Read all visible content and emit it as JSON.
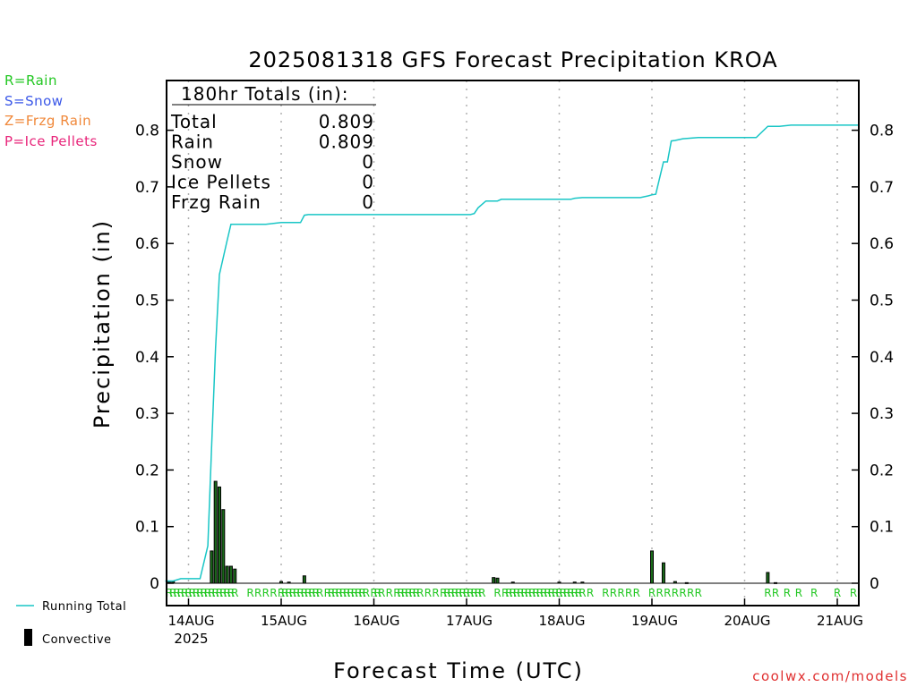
{
  "legend_keys": [
    {
      "text": "R=Rain",
      "color": "#22c722"
    },
    {
      "text": "S=Snow",
      "color": "#3a57e8"
    },
    {
      "text": "Z=Frzg Rain",
      "color": "#f0883a"
    },
    {
      "text": "P=Ice Pellets",
      "color": "#e8257a"
    }
  ],
  "bottom_legend": {
    "running_total": "Running Total",
    "convective": "Convective"
  },
  "totals_box": {
    "header": "180hr Totals (in):",
    "rows": [
      {
        "label": "Total",
        "value": "0.809"
      },
      {
        "label": "Rain",
        "value": "0.809"
      },
      {
        "label": "Snow",
        "value": "0"
      },
      {
        "label": "Ice Pellets",
        "value": "0"
      },
      {
        "label": "Frzg Rain",
        "value": "0"
      }
    ]
  },
  "credit": "coolwx.com/models",
  "colors": {
    "running_total": "#19c6c6",
    "bars": "#000000",
    "bar_fill": "#1a6b1a",
    "ptype_rain": "#22c722",
    "grid": "#b0b0b0"
  },
  "chart_data": {
    "type": "bar",
    "title": "2025081318 GFS Forecast Precipitation KROA",
    "xlabel": "Forecast Time (UTC)",
    "ylabel": "Precipitation (in)",
    "ylim": [
      0,
      0.9
    ],
    "xlim_hours": [
      -6,
      180
    ],
    "y_ticks": [
      "0",
      "0.1",
      "0.2",
      "0.3",
      "0.4",
      "0.5",
      "0.6",
      "0.7",
      "0.8"
    ],
    "x_ticks": [
      {
        "hour": 6,
        "label": "14AUG",
        "sublabel": "2025"
      },
      {
        "hour": 30,
        "label": "15AUG"
      },
      {
        "hour": 54,
        "label": "16AUG"
      },
      {
        "hour": 78,
        "label": "17AUG"
      },
      {
        "hour": 102,
        "label": "18AUG"
      },
      {
        "hour": 126,
        "label": "19AUG"
      },
      {
        "hour": 150,
        "label": "20AUG"
      },
      {
        "hour": 174,
        "label": "21AUG"
      }
    ],
    "grid": "dotted vertical at 00Z",
    "series": [
      {
        "name": "Running Total",
        "type": "line",
        "x": [
          -6,
          -4,
          -2,
          0,
          1,
          2,
          3,
          5,
          6,
          7,
          8,
          9,
          10,
          11,
          12,
          18,
          20,
          24,
          26,
          29,
          30,
          31,
          36,
          48,
          60,
          72,
          73,
          74,
          75,
          77,
          79,
          80,
          81,
          84,
          96,
          99,
          100,
          102,
          108,
          114,
          117,
          119,
          120,
          121,
          123,
          124,
          125,
          126,
          128,
          132,
          138,
          140,
          146,
          147,
          150,
          153,
          156,
          168,
          180
        ],
        "y": [
          0.004,
          0.004,
          0.008,
          0.008,
          0.008,
          0.008,
          0.008,
          0.066,
          0.245,
          0.415,
          0.545,
          0.575,
          0.605,
          0.634,
          0.634,
          0.634,
          0.634,
          0.637,
          0.637,
          0.637,
          0.65,
          0.651,
          0.651,
          0.651,
          0.651,
          0.651,
          0.651,
          0.653,
          0.663,
          0.675,
          0.675,
          0.675,
          0.678,
          0.678,
          0.678,
          0.678,
          0.68,
          0.681,
          0.681,
          0.681,
          0.681,
          0.684,
          0.686,
          0.687,
          0.744,
          0.744,
          0.781,
          0.782,
          0.785,
          0.787,
          0.787,
          0.787,
          0.787,
          0.787,
          0.807,
          0.807,
          0.809,
          0.809,
          0.809
        ]
      },
      {
        "name": "Convective",
        "type": "bar",
        "x": [
          -5,
          -4,
          6,
          7,
          8,
          9,
          10,
          11,
          12,
          24,
          26,
          30,
          79,
          80,
          84,
          96,
          100,
          102,
          120,
          123,
          126,
          129,
          150,
          152
        ],
        "y": [
          0.002,
          0.003,
          0.057,
          0.18,
          0.17,
          0.13,
          0.03,
          0.03,
          0.025,
          0.003,
          0.002,
          0.013,
          0.01,
          0.009,
          0.002,
          0.002,
          0.002,
          0.002,
          0.057,
          0.036,
          0.003,
          0.001,
          0.019,
          0.001
        ]
      }
    ],
    "ptype_marks": {
      "symbol": "R",
      "hours": [
        -5,
        -4,
        -3,
        -2,
        -1,
        0,
        1,
        2,
        3,
        4,
        5,
        6,
        7,
        8,
        9,
        10,
        11,
        12,
        16,
        18,
        20,
        22,
        24,
        25,
        26,
        27,
        28,
        29,
        30,
        31,
        32,
        33,
        34,
        36,
        37,
        38,
        39,
        40,
        41,
        42,
        43,
        44,
        45,
        46,
        48,
        49,
        50,
        52,
        54,
        55,
        56,
        57,
        58,
        59,
        60,
        62,
        64,
        66,
        67,
        68,
        69,
        70,
        71,
        72,
        73,
        74,
        75,
        76,
        80,
        82,
        83,
        84,
        85,
        86,
        87,
        88,
        89,
        90,
        91,
        92,
        93,
        94,
        95,
        96,
        97,
        98,
        99,
        100,
        101,
        102,
        104,
        108,
        110,
        112,
        114,
        116,
        120,
        122,
        124,
        126,
        128,
        130,
        132,
        150,
        152,
        155,
        158,
        162,
        168,
        180
      ]
    }
  }
}
